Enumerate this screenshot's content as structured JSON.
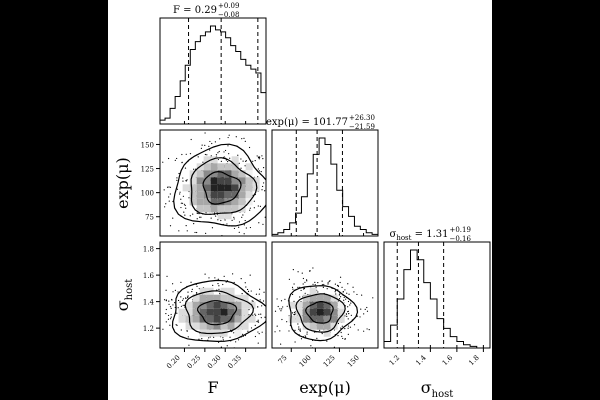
{
  "chart_data": {
    "type": "corner",
    "parameters": [
      {
        "name": "F",
        "axis_label": "F",
        "sub": "",
        "median": "0.29",
        "plus": "+0.09",
        "minus": "−0.08",
        "quantiles": [
          0.21,
          0.29,
          0.38
        ],
        "range": [
          0.14,
          0.4
        ],
        "ticks": [
          "0.20",
          "0.25",
          "0.30",
          "0.35"
        ],
        "tick_values": [
          0.2,
          0.25,
          0.3,
          0.35
        ]
      },
      {
        "name": "exp(μ)",
        "axis_label": "exp(μ)",
        "sub": "",
        "median": "101.77",
        "plus": "+26.30",
        "minus": "−21.59",
        "quantiles": [
          80.2,
          101.8,
          128.1
        ],
        "range": [
          55,
          165
        ],
        "ticks": [
          "75",
          "100",
          "125",
          "150"
        ],
        "tick_values": [
          75,
          100,
          125,
          150
        ]
      },
      {
        "name": "σ",
        "axis_label": "σ",
        "sub": "host",
        "median": "1.31",
        "plus": "+0.19",
        "minus": "−0.16",
        "quantiles": [
          1.15,
          1.31,
          1.5
        ],
        "range": [
          1.05,
          1.85
        ],
        "ticks": [
          "1.2",
          "1.4",
          "1.6",
          "1.8"
        ],
        "tick_values": [
          1.2,
          1.4,
          1.6,
          1.8
        ]
      }
    ],
    "histograms": [
      [
        2,
        3,
        8,
        14,
        22,
        30,
        38,
        42,
        45,
        47,
        50,
        48,
        47,
        44,
        40,
        37,
        33,
        30,
        28,
        26,
        16
      ],
      [
        1,
        2,
        4,
        8,
        14,
        24,
        38,
        50,
        60,
        56,
        44,
        28,
        18,
        12,
        6,
        4,
        2,
        1
      ],
      [
        4,
        14,
        30,
        48,
        60,
        54,
        40,
        30,
        18,
        12,
        7,
        4,
        2,
        1,
        0,
        0
      ]
    ],
    "pairs": [
      {
        "x": 0,
        "y": 1,
        "center": [
          0.29,
          105
        ],
        "spread": [
          0.05,
          18
        ],
        "corr": -0.05
      },
      {
        "x": 0,
        "y": 2,
        "center": [
          0.28,
          1.32
        ],
        "spread": [
          0.05,
          0.1
        ],
        "corr": -0.1
      },
      {
        "x": 1,
        "y": 2,
        "center": [
          105,
          1.32
        ],
        "spread": [
          15,
          0.09
        ],
        "corr": 0.0
      }
    ]
  }
}
